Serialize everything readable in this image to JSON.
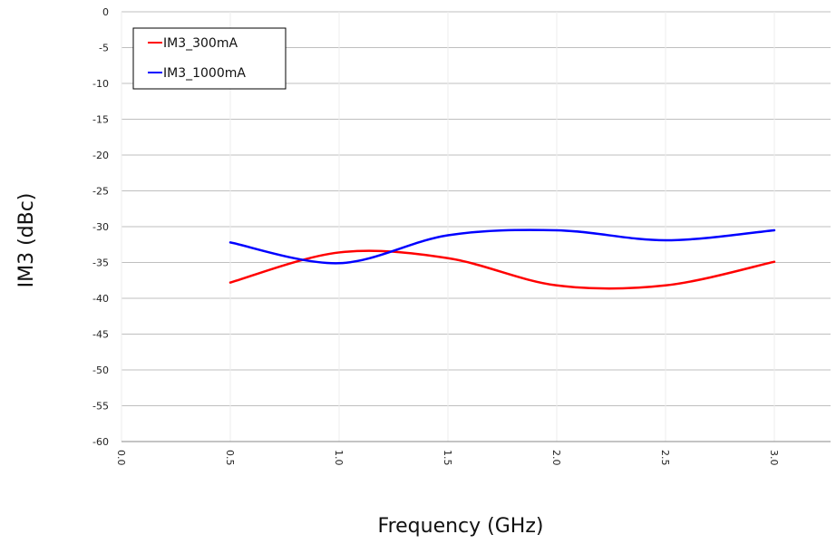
{
  "chart_data": {
    "type": "line",
    "title": "",
    "xlabel": "Frequency (GHz)",
    "ylabel": "IM3 (dBc)",
    "xlim": [
      0.0,
      3.0
    ],
    "ylim": [
      -60,
      0
    ],
    "x_ticks": [
      "0.0",
      "0.5",
      "1.0",
      "1.5",
      "2.0",
      "2.5",
      "3.0"
    ],
    "y_ticks": [
      "0",
      "-5",
      "-10",
      "-15",
      "-20",
      "-25",
      "-30",
      "-35",
      "-40",
      "-45",
      "-50",
      "-55",
      "-60"
    ],
    "grid": "horizontal",
    "legend_position": "top-left",
    "x": [
      0.5,
      1.0,
      1.5,
      2.0,
      2.5,
      3.0
    ],
    "series": [
      {
        "name": "IM3_300mA",
        "color": "#ff0000",
        "values": [
          -37.8,
          -33.6,
          -34.4,
          -38.2,
          -38.2,
          -34.9
        ]
      },
      {
        "name": "IM3_1000mA",
        "color": "#0000ff",
        "values": [
          -32.2,
          -35.1,
          -31.2,
          -30.5,
          -31.9,
          -30.5
        ]
      }
    ]
  }
}
